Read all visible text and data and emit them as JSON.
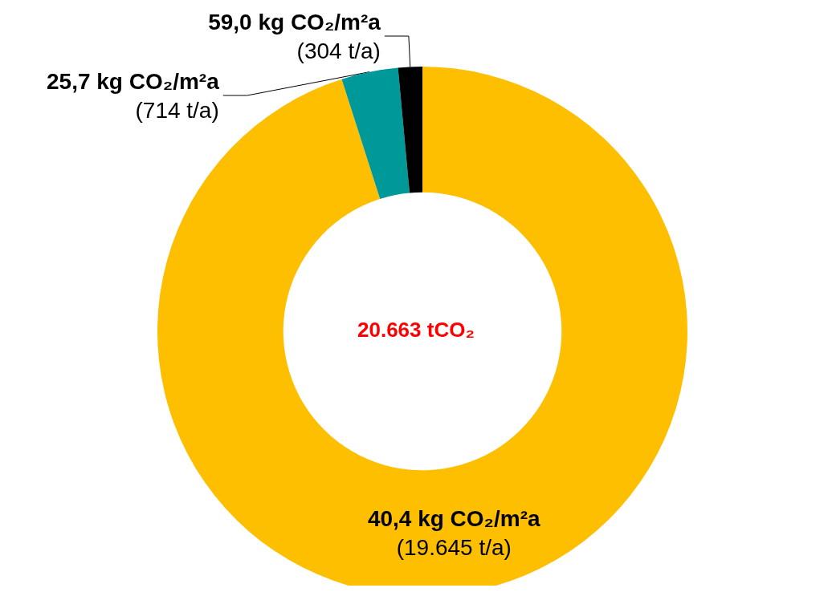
{
  "chart_data": {
    "type": "donut",
    "categories": [
      "40,4 kg CO₂/m²a",
      "25,7 kg CO₂/m²a",
      "59,0 kg CO₂/m²a"
    ],
    "values": [
      19645,
      714,
      304
    ],
    "value_labels": [
      "(19.645 t/a)",
      "(714 t/a)",
      "(304 t/a)"
    ],
    "colors": [
      "#fdbf00",
      "#009999",
      "#000000"
    ],
    "annotations": [
      "20.663 tCO₂"
    ],
    "legend": false
  }
}
